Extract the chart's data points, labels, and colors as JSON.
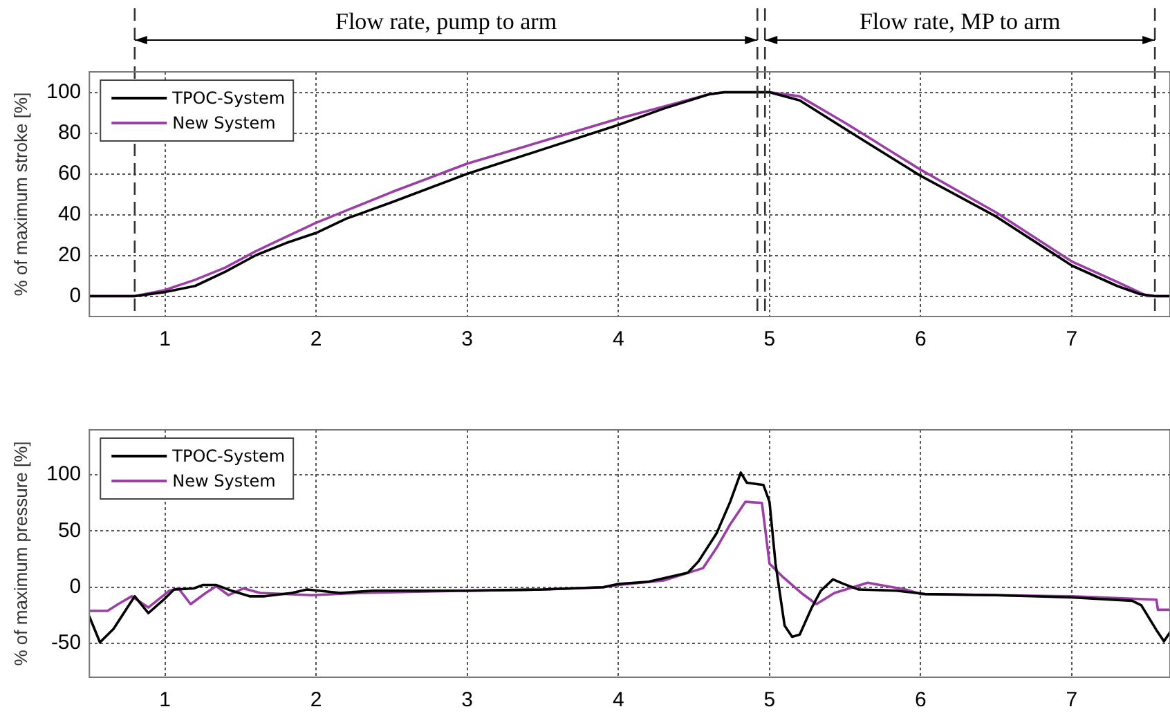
{
  "chart_data": [
    {
      "type": "line",
      "ylabel": "% of maximum stroke [%]",
      "xlim": [
        0.5,
        7.65
      ],
      "xticks": [
        1,
        2,
        3,
        4,
        5,
        6,
        7
      ],
      "ylim": [
        -10,
        110
      ],
      "yticks": [
        0,
        20,
        40,
        60,
        80,
        100
      ],
      "grid": true,
      "legend": "top left",
      "marker": "none",
      "line_style": "solid",
      "series": [
        {
          "name": "TPOC-System",
          "color": "#000000",
          "x": [
            0.5,
            0.8,
            1.0,
            1.2,
            1.4,
            1.6,
            1.8,
            2.0,
            2.2,
            2.5,
            3.0,
            3.5,
            4.0,
            4.3,
            4.6,
            4.7,
            5.0,
            5.2,
            5.5,
            6.0,
            6.5,
            7.0,
            7.3,
            7.45,
            7.55,
            7.65
          ],
          "values": [
            0,
            0,
            2,
            5,
            12,
            20,
            26,
            31,
            38,
            46,
            60,
            72,
            84,
            92,
            99,
            100,
            100,
            96,
            82,
            59,
            39,
            15,
            5,
            1,
            0,
            0
          ]
        },
        {
          "name": "New System",
          "color": "#9b3fa6",
          "x": [
            0.5,
            0.8,
            1.0,
            1.2,
            1.4,
            1.6,
            1.8,
            2.0,
            2.5,
            3.0,
            3.5,
            4.0,
            4.3,
            4.6,
            4.7,
            5.0,
            5.2,
            5.5,
            6.0,
            6.5,
            7.0,
            7.3,
            7.5,
            7.65
          ],
          "values": [
            0,
            0,
            3,
            8,
            14,
            22,
            29,
            36,
            51,
            65,
            76,
            87,
            93,
            99,
            100,
            100,
            98,
            85,
            62,
            41,
            17,
            7,
            0,
            0
          ]
        }
      ],
      "ref_lines": [
        {
          "axis": "x",
          "value": 0.8,
          "line_style": "dashed"
        },
        {
          "axis": "x",
          "value": 4.92,
          "line_style": "dashed"
        },
        {
          "axis": "x",
          "value": 4.97,
          "line_style": "dashed"
        },
        {
          "axis": "x",
          "value": 7.55,
          "line_style": "dashed"
        }
      ],
      "annotations": [
        "Flow rate, pump to arm",
        "Flow rate, MP to arm"
      ]
    },
    {
      "type": "line",
      "ylabel": "% of maximum pressure [%]",
      "xlim": [
        0.5,
        7.65
      ],
      "xticks": [
        1,
        2,
        3,
        4,
        5,
        6,
        7
      ],
      "ylim": [
        -80,
        140
      ],
      "yticks": [
        -50,
        0,
        50,
        100
      ],
      "grid": true,
      "legend": "top left",
      "marker": "none",
      "line_style": "solid",
      "series": [
        {
          "name": "TPOC-System",
          "color": "#000000",
          "x": [
            0.5,
            0.57,
            0.66,
            0.8,
            0.89,
            1.0,
            1.06,
            1.19,
            1.25,
            1.34,
            1.44,
            1.56,
            1.66,
            1.84,
            1.94,
            2.16,
            2.38,
            3.0,
            3.5,
            3.9,
            4.0,
            4.2,
            4.46,
            4.53,
            4.65,
            4.74,
            4.81,
            4.85,
            4.96,
            5.0,
            5.04,
            5.1,
            5.15,
            5.2,
            5.28,
            5.34,
            5.42,
            5.49,
            5.59,
            5.84,
            6.03,
            6.5,
            7.0,
            7.4,
            7.46,
            7.56,
            7.61,
            7.65
          ],
          "values": [
            -26,
            -49,
            -37,
            -8,
            -23,
            -10,
            -2,
            -1,
            2,
            2,
            -3,
            -8,
            -8,
            -5,
            -2,
            -5,
            -3,
            -3,
            -2,
            0,
            3,
            5,
            13,
            23,
            48,
            76,
            102,
            93,
            91,
            76,
            21,
            -34,
            -44,
            -42,
            -18,
            -3,
            7,
            3,
            -2,
            -3,
            -6,
            -7,
            -9,
            -12,
            -16,
            -38,
            -48,
            -40
          ]
        },
        {
          "name": "New System",
          "color": "#9b3fa6",
          "x": [
            0.5,
            0.62,
            0.69,
            0.78,
            0.89,
            1.03,
            1.09,
            1.17,
            1.27,
            1.34,
            1.42,
            1.52,
            1.63,
            1.97,
            2.3,
            3.0,
            3.5,
            3.9,
            4.0,
            4.3,
            4.56,
            4.65,
            4.74,
            4.84,
            4.95,
            5.0,
            5.09,
            5.21,
            5.31,
            5.43,
            5.65,
            5.9,
            6.0,
            6.5,
            7.0,
            7.56,
            7.57,
            7.65
          ],
          "values": [
            -21,
            -21,
            -15,
            -8,
            -18,
            -3,
            -1,
            -15,
            -5,
            1,
            -7,
            -1,
            -5,
            -7,
            -5,
            -3,
            -2,
            0,
            2,
            6,
            17,
            35,
            56,
            76,
            75,
            21,
            9,
            -5,
            -15,
            -5,
            4,
            -2,
            -6,
            -7,
            -8,
            -11,
            -20,
            -20
          ]
        }
      ]
    }
  ]
}
